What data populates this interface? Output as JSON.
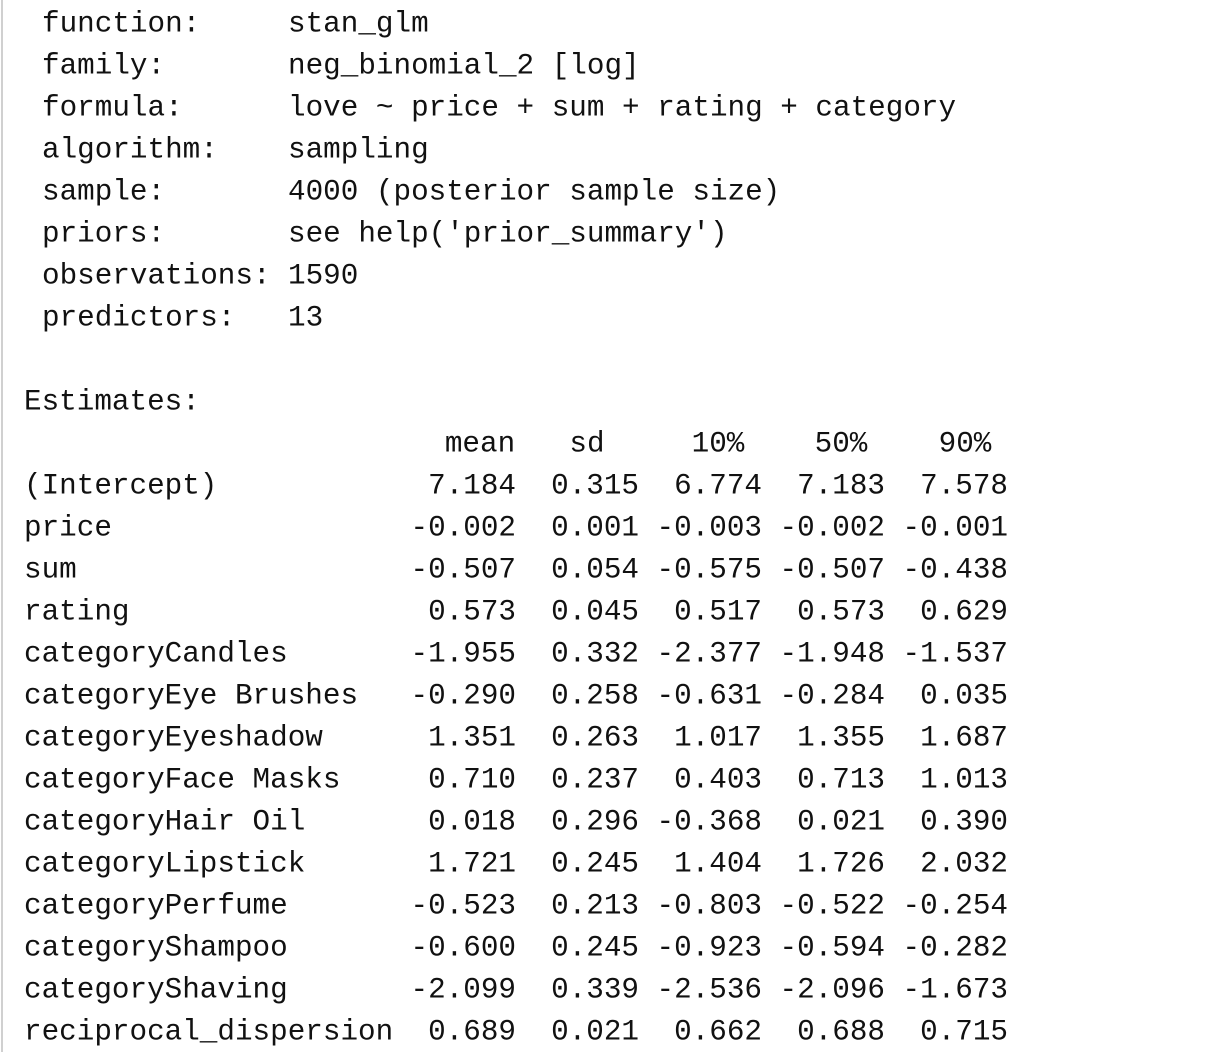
{
  "summary": {
    "fields": [
      {
        "label": "function:",
        "value": "stan_glm"
      },
      {
        "label": "family:",
        "value": "neg_binomial_2 [log]"
      },
      {
        "label": "formula:",
        "value": "love ~ price + sum + rating + category"
      },
      {
        "label": "algorithm:",
        "value": "sampling"
      },
      {
        "label": "sample:",
        "value": "4000 (posterior sample size)"
      },
      {
        "label": "priors:",
        "value": "see help('prior_summary')"
      },
      {
        "label": "observations:",
        "value": "1590"
      },
      {
        "label": "predictors:",
        "value": "13"
      }
    ],
    "estimates_title": "Estimates:",
    "columns": [
      "mean",
      "sd",
      "10%",
      "50%",
      "90%"
    ],
    "rows": [
      {
        "name": "(Intercept)",
        "cells": [
          "7.184",
          "0.315",
          "6.774",
          "7.183",
          "7.578"
        ]
      },
      {
        "name": "price",
        "cells": [
          "-0.002",
          "0.001",
          "-0.003",
          "-0.002",
          "-0.001"
        ]
      },
      {
        "name": "sum",
        "cells": [
          "-0.507",
          "0.054",
          "-0.575",
          "-0.507",
          "-0.438"
        ]
      },
      {
        "name": "rating",
        "cells": [
          "0.573",
          "0.045",
          "0.517",
          "0.573",
          "0.629"
        ]
      },
      {
        "name": "categoryCandles",
        "cells": [
          "-1.955",
          "0.332",
          "-2.377",
          "-1.948",
          "-1.537"
        ]
      },
      {
        "name": "categoryEye Brushes",
        "cells": [
          "-0.290",
          "0.258",
          "-0.631",
          "-0.284",
          "0.035"
        ]
      },
      {
        "name": "categoryEyeshadow",
        "cells": [
          "1.351",
          "0.263",
          "1.017",
          "1.355",
          "1.687"
        ]
      },
      {
        "name": "categoryFace Masks",
        "cells": [
          "0.710",
          "0.237",
          "0.403",
          "0.713",
          "1.013"
        ]
      },
      {
        "name": "categoryHair Oil",
        "cells": [
          "0.018",
          "0.296",
          "-0.368",
          "0.021",
          "0.390"
        ]
      },
      {
        "name": "categoryLipstick",
        "cells": [
          "1.721",
          "0.245",
          "1.404",
          "1.726",
          "2.032"
        ]
      },
      {
        "name": "categoryPerfume",
        "cells": [
          "-0.523",
          "0.213",
          "-0.803",
          "-0.522",
          "-0.254"
        ]
      },
      {
        "name": "categoryShampoo",
        "cells": [
          "-0.600",
          "0.245",
          "-0.923",
          "-0.594",
          "-0.282"
        ]
      },
      {
        "name": "categoryShaving",
        "cells": [
          "-2.099",
          "0.339",
          "-2.536",
          "-2.096",
          "-1.673"
        ]
      },
      {
        "name": "reciprocal_dispersion",
        "cells": [
          "0.689",
          "0.021",
          "0.662",
          "0.688",
          "0.715"
        ]
      }
    ]
  }
}
